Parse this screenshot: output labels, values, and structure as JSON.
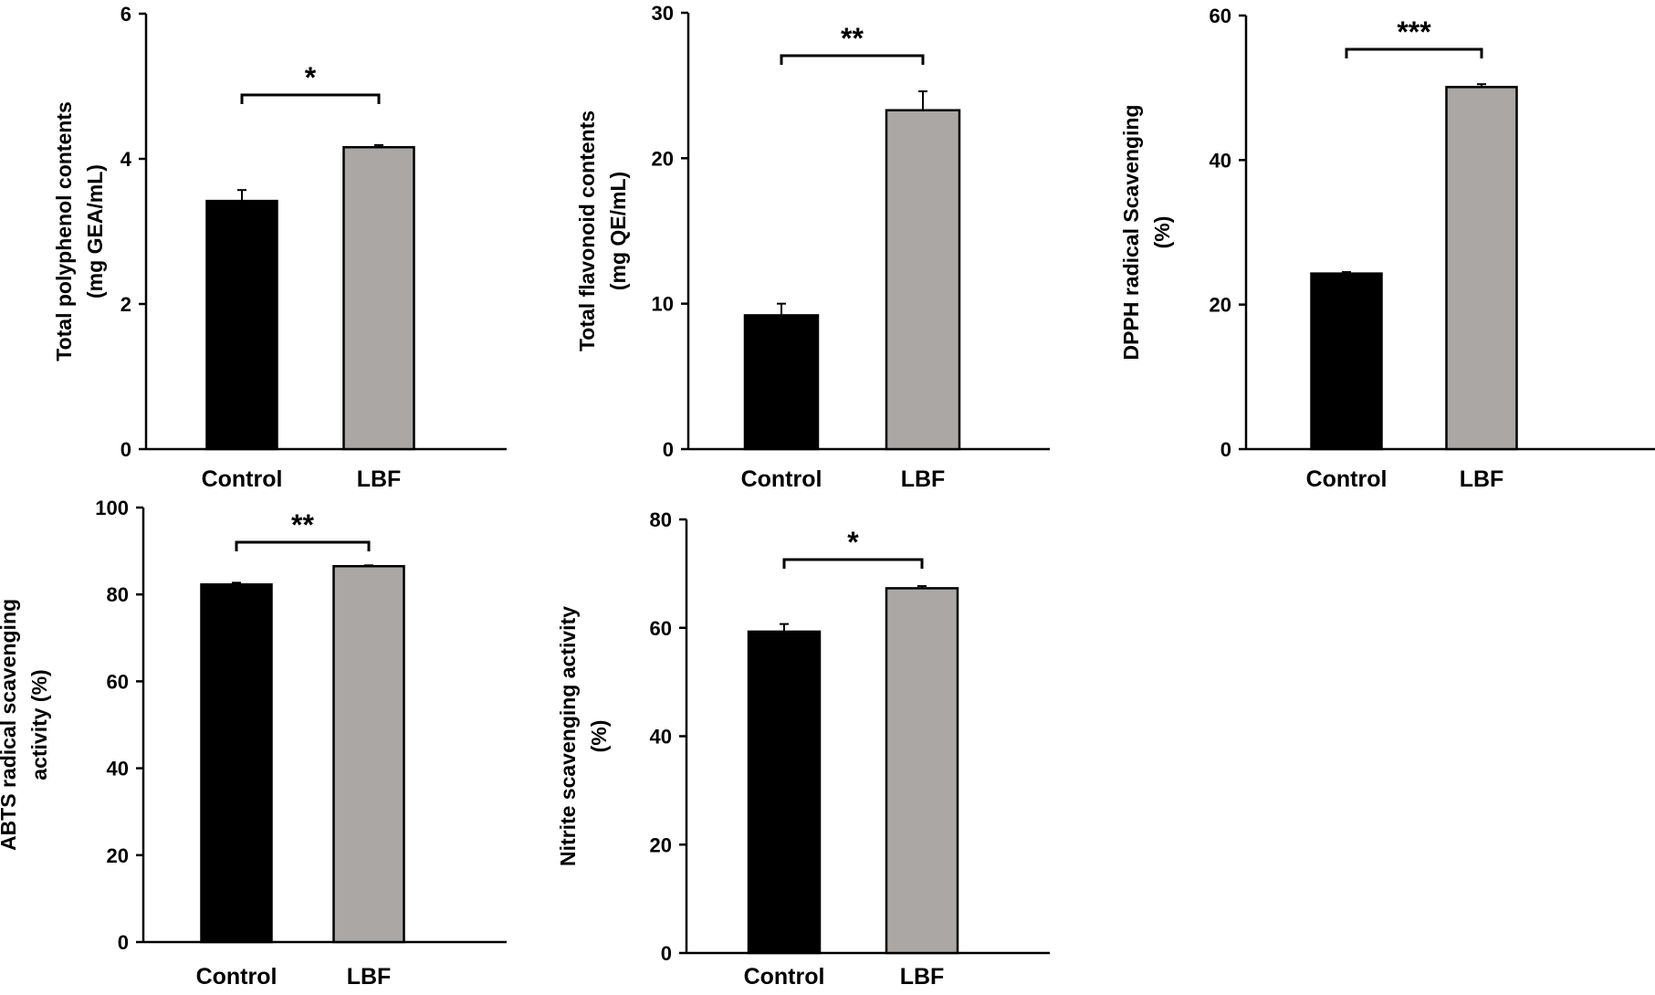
{
  "chart_data": [
    {
      "type": "bar",
      "categories": [
        "Control",
        "LBF"
      ],
      "values": [
        3.42,
        4.16
      ],
      "errors": [
        0.15,
        0.03
      ],
      "ylabel_lines": [
        "Total polyphenol contents",
        "(mg GEA/mL)"
      ],
      "ylim": [
        0,
        6
      ],
      "yticks": [
        "0",
        "2",
        "4",
        "6"
      ],
      "significance": "*",
      "bar_colors": [
        "#000000",
        "#aaa7a5"
      ]
    },
    {
      "type": "bar",
      "categories": [
        "Control",
        "LBF"
      ],
      "values": [
        9.2,
        23.3
      ],
      "errors": [
        0.8,
        1.3
      ],
      "ylabel_lines": [
        "Total flavonoid contents",
        "(mg QE/mL)"
      ],
      "ylim": [
        0,
        30
      ],
      "yticks": [
        "0",
        "10",
        "20",
        "30"
      ],
      "significance": "**",
      "bar_colors": [
        "#000000",
        "#aaa7a5"
      ]
    },
    {
      "type": "bar",
      "categories": [
        "Control",
        "LBF"
      ],
      "values": [
        24.3,
        50.1
      ],
      "errors": [
        0.2,
        0.4
      ],
      "ylabel_lines": [
        "DPPH radical Scavenging",
        "(%)"
      ],
      "ylim": [
        0,
        60
      ],
      "yticks": [
        "0",
        "20",
        "40",
        "60"
      ],
      "significance": "***",
      "bar_colors": [
        "#000000",
        "#aaa7a5"
      ]
    },
    {
      "type": "bar",
      "categories": [
        "Control",
        "LBF"
      ],
      "values": [
        82.3,
        86.5
      ],
      "errors": [
        0.4,
        0.2
      ],
      "ylabel_lines": [
        "ABTS radical scavenging",
        "activity (%)"
      ],
      "ylim": [
        0,
        100
      ],
      "yticks": [
        "0",
        "20",
        "40",
        "60",
        "80",
        "100"
      ],
      "significance": "**",
      "bar_colors": [
        "#000000",
        "#aaa7a5"
      ]
    },
    {
      "type": "bar",
      "categories": [
        "Control",
        "LBF"
      ],
      "values": [
        59.3,
        67.3
      ],
      "errors": [
        1.4,
        0.4
      ],
      "ylabel_lines": [
        "Nitrite scavenging activity",
        "(%)"
      ],
      "ylim": [
        0,
        80
      ],
      "yticks": [
        "0",
        "20",
        "40",
        "60",
        "80"
      ],
      "significance": "*",
      "bar_colors": [
        "#000000",
        "#aaa7a5"
      ]
    }
  ]
}
